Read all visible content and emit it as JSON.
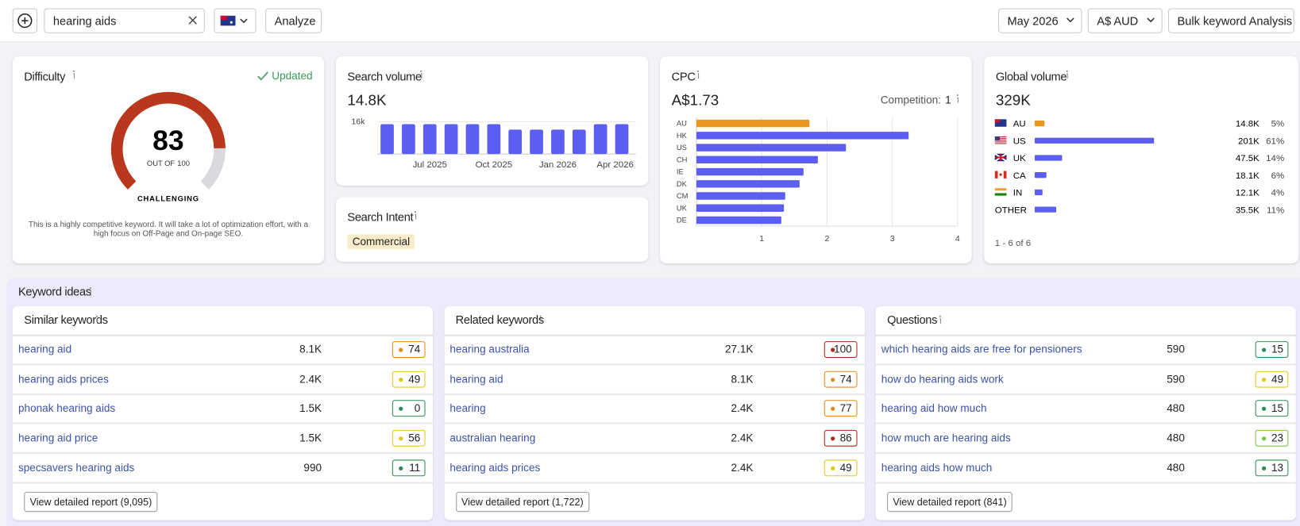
{
  "header": {
    "search_query": "hearing aids",
    "analyze": "Analyze",
    "month": "May 2026",
    "currency": "A$ AUD",
    "bulk": "Bulk keyword Analysis"
  },
  "difficulty": {
    "title": "Difficulty",
    "status": "Updated",
    "score": 83,
    "max_prefix": "OUT OF",
    "max": 100,
    "level": "CHALLENGING",
    "description": "This is a highly competitive keyword. It will take a lot of optimization effort, with a high focus on Off-Page and On-page SEO."
  },
  "search_volume": {
    "title": "Search volume",
    "total": "14.8K",
    "chart": {
      "type": "bar",
      "categories": [
        null,
        null,
        "Jul 2025",
        null,
        null,
        "Oct 2025",
        null,
        null,
        "Jan 2026",
        null,
        null,
        "Apr 2026"
      ],
      "values": [
        14800,
        14800,
        14800,
        14800,
        14800,
        14800,
        12100,
        12100,
        12100,
        12100,
        14800,
        14800
      ],
      "color": "#5b5ef0",
      "ylim": [
        0,
        16000
      ],
      "yticks": [
        {
          "value": 16000,
          "label": "16k"
        }
      ],
      "grid": true
    }
  },
  "search_intent": {
    "title": "Search Intent",
    "intent": "Commercial"
  },
  "cpc": {
    "title": "CPC",
    "value": "A$1.73",
    "competition_label": "Competition:",
    "competition": 1,
    "chart": {
      "type": "hbar",
      "categories": [
        "AU",
        "HK",
        "US",
        "CH",
        "IE",
        "DK",
        "CM",
        "UK",
        "DE"
      ],
      "values": [
        1.73,
        3.25,
        2.29,
        1.86,
        1.64,
        1.58,
        1.36,
        1.34,
        1.3
      ],
      "colors": [
        "#e8961e",
        "#5b5ef0",
        "#5b5ef0",
        "#5b5ef0",
        "#5b5ef0",
        "#5b5ef0",
        "#5b5ef0",
        "#5b5ef0",
        "#5b5ef0"
      ],
      "xlim": [
        0,
        4
      ],
      "xticks": [
        1,
        2,
        3,
        4
      ],
      "grid": true
    }
  },
  "global_volume": {
    "title": "Global volume",
    "total": "329K",
    "rows": [
      {
        "code": "AU",
        "volume": "14.8K",
        "share": 5,
        "share_label": "5%",
        "color": "#e8961e"
      },
      {
        "code": "US",
        "volume": "201K",
        "share": 61,
        "share_label": "61%",
        "color": "#5b5ef0"
      },
      {
        "code": "UK",
        "volume": "47.5K",
        "share": 14,
        "share_label": "14%",
        "color": "#5b5ef0"
      },
      {
        "code": "CA",
        "volume": "18.1K",
        "share": 6,
        "share_label": "6%",
        "color": "#5b5ef0"
      },
      {
        "code": "IN",
        "volume": "12.1K",
        "share": 4,
        "share_label": "4%",
        "color": "#5b5ef0"
      },
      {
        "code": "OTHER",
        "volume": "35.5K",
        "share": 11,
        "share_label": "11%",
        "color": "#5b5ef0"
      }
    ],
    "pagination": "1 - 6 of 6"
  },
  "keyword_ideas": {
    "title": "Keyword ideas",
    "panels": [
      {
        "title": "Similar keywords",
        "rows": [
          {
            "keyword": "hearing aid",
            "volume": "8.1K",
            "kd": 74
          },
          {
            "keyword": "hearing aids prices",
            "volume": "2.4K",
            "kd": 49
          },
          {
            "keyword": "phonak hearing aids",
            "volume": "1.5K",
            "kd": 0
          },
          {
            "keyword": "hearing aid price",
            "volume": "1.5K",
            "kd": 56
          },
          {
            "keyword": "specsavers hearing aids",
            "volume": "990",
            "kd": 11
          }
        ],
        "button": "View detailed report (9,095)"
      },
      {
        "title": "Related keywords",
        "rows": [
          {
            "keyword": "hearing australia",
            "volume": "27.1K",
            "kd": 100
          },
          {
            "keyword": "hearing aid",
            "volume": "8.1K",
            "kd": 74
          },
          {
            "keyword": "hearing",
            "volume": "2.4K",
            "kd": 77
          },
          {
            "keyword": "australian hearing",
            "volume": "2.4K",
            "kd": 86
          },
          {
            "keyword": "hearing aids prices",
            "volume": "2.4K",
            "kd": 49
          }
        ],
        "button": "View detailed report (1,722)"
      },
      {
        "title": "Questions",
        "rows": [
          {
            "keyword": "which hearing aids are free for pensioners",
            "volume": "590",
            "kd": 15
          },
          {
            "keyword": "how do hearing aids work",
            "volume": "590",
            "kd": 49
          },
          {
            "keyword": "hearing aid how much",
            "volume": "480",
            "kd": 15
          },
          {
            "keyword": "how much are hearing aids",
            "volume": "480",
            "kd": 23
          },
          {
            "keyword": "hearing aids how much",
            "volume": "480",
            "kd": 13
          }
        ],
        "button": "View detailed report (841)"
      }
    ]
  }
}
